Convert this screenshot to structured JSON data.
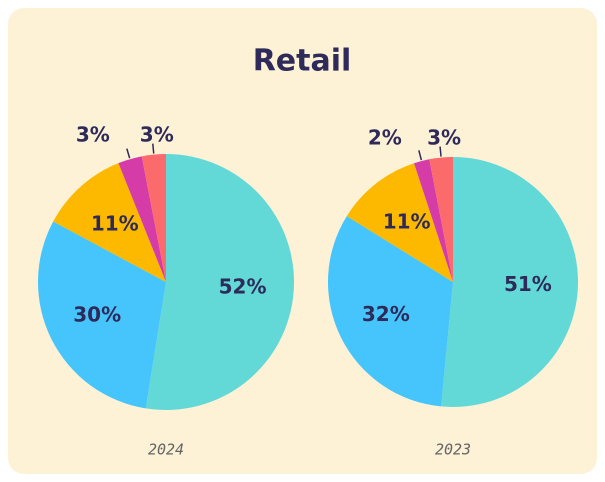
{
  "title": "Retail",
  "chart_data": [
    {
      "type": "pie",
      "title": "2024",
      "values": [
        52,
        30,
        11,
        3,
        3
      ],
      "value_labels": [
        "52%",
        "30%",
        "11%",
        "3%",
        "3%"
      ],
      "colors": [
        "#62d9d6",
        "#45c5fb",
        "#fdb900",
        "#d63ca8",
        "#fb6b6b"
      ]
    },
    {
      "type": "pie",
      "title": "2023",
      "values": [
        51,
        32,
        11,
        2,
        3
      ],
      "value_labels": [
        "51%",
        "32%",
        "11%",
        "2%",
        "3%"
      ],
      "colors": [
        "#62d9d6",
        "#45c5fb",
        "#fdb900",
        "#d63ca8",
        "#fb6b6b"
      ]
    }
  ]
}
